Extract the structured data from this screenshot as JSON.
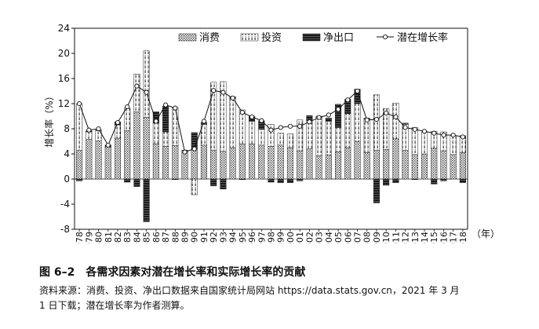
{
  "chart_data": {
    "type": "bar",
    "ylabel": "增长率（%）",
    "xunit": "（年）",
    "ylim": [
      -8,
      24
    ],
    "yticks": [
      -8,
      -4,
      0,
      4,
      8,
      12,
      16,
      20,
      24
    ],
    "categories": [
      "1978",
      "1979",
      "1980",
      "1981",
      "1982",
      "1983",
      "1984",
      "1985",
      "1986",
      "1987",
      "1988",
      "1989",
      "1990",
      "1991",
      "1992",
      "1993",
      "1994",
      "1995",
      "1996",
      "1997",
      "1998",
      "1999",
      "2000",
      "2001",
      "2002",
      "2003",
      "2004",
      "2005",
      "2006",
      "2007",
      "2008",
      "2009",
      "2010",
      "2011",
      "2012",
      "2013",
      "2014",
      "2015",
      "2016",
      "2017",
      "2018"
    ],
    "legend_position": "top-right",
    "series": [
      {
        "name": "消费",
        "style": "dotted",
        "values": [
          4.6,
          6.3,
          6.1,
          5.1,
          6.5,
          7.7,
          10.7,
          9.8,
          5.6,
          5.2,
          5.3,
          4.2,
          4.8,
          5.4,
          4.6,
          4.4,
          5.0,
          5.6,
          5.6,
          5.4,
          5.2,
          5.4,
          5.0,
          4.5,
          4.8,
          3.7,
          3.8,
          4.3,
          5.0,
          6.0,
          4.2,
          4.6,
          4.7,
          6.4,
          4.6,
          3.9,
          4.0,
          4.9,
          4.5,
          3.9,
          4.2
        ]
      },
      {
        "name": "投资",
        "style": "dash-dot",
        "values": [
          7.4,
          1.2,
          1.6,
          0.1,
          2.1,
          3.6,
          6.0,
          10.6,
          3.3,
          2.3,
          6.1,
          0.3,
          -2.5,
          3.3,
          10.8,
          11.1,
          7.8,
          5.4,
          3.6,
          2.5,
          3.5,
          1.9,
          2.2,
          4.9,
          4.5,
          6.1,
          5.4,
          3.9,
          5.4,
          6.0,
          5.4,
          8.8,
          6.5,
          5.7,
          4.1,
          4.3,
          3.5,
          2.7,
          3.0,
          3.0,
          2.7
        ]
      },
      {
        "name": "净出口",
        "style": "solid-dark",
        "values": [
          -0.3,
          0.2,
          0.1,
          0.2,
          0.5,
          -0.5,
          -1.2,
          -6.8,
          1.8,
          4.1,
          -0.1,
          0.1,
          2.6,
          0.3,
          -1.1,
          -1.6,
          0.3,
          -0.1,
          0.8,
          1.4,
          -0.5,
          -0.6,
          -0.6,
          -0.3,
          0.8,
          0.2,
          0.5,
          3.7,
          2.3,
          2.3,
          0.1,
          -3.8,
          -1.0,
          -0.6,
          0.2,
          -0.1,
          0.0,
          -0.8,
          -0.3,
          0.0,
          -0.6
        ]
      },
      {
        "name": "潜在增长率",
        "style": "line-marker",
        "values": [
          12.0,
          7.8,
          8.0,
          5.4,
          9.0,
          11.5,
          14.8,
          13.8,
          9.2,
          11.8,
          11.3,
          4.3,
          4.8,
          9.2,
          14.1,
          13.8,
          12.9,
          10.6,
          9.9,
          9.3,
          7.8,
          8.2,
          8.4,
          8.4,
          9.1,
          9.8,
          10.2,
          11.1,
          12.6,
          14.0,
          9.4,
          9.5,
          10.5,
          9.9,
          8.2,
          7.9,
          7.6,
          7.3,
          7.0,
          7.0,
          6.7
        ]
      }
    ]
  },
  "caption": {
    "title": "图 6–2　各需求因素对潜在增长率和实际增长率的贡献",
    "source_line1": "资料来源：消费、投资、净出口数据来自国家统计局网站 https://data.stats.gov.cn，2021 年 3 月",
    "source_line2": "1 日下载；潜在增长率为作者测算。"
  }
}
